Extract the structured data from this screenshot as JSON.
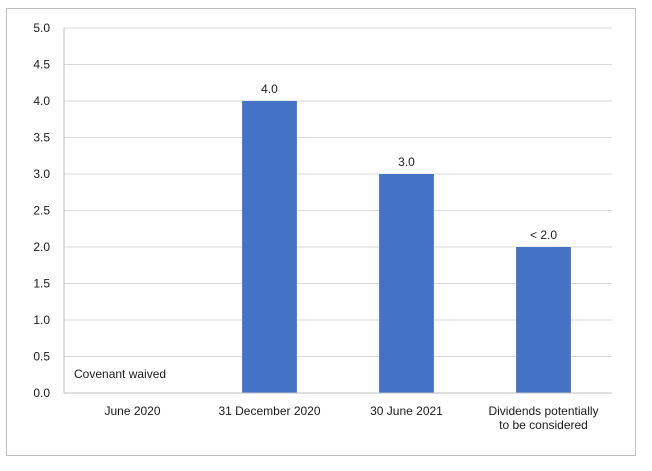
{
  "chart_data": {
    "type": "bar",
    "categories": [
      "June 2020",
      "31 December 2020",
      "30 June 2021",
      "Dividends potentially to be considered"
    ],
    "category_lines": [
      [
        "June 2020"
      ],
      [
        "31 December 2020"
      ],
      [
        "30 June 2021"
      ],
      [
        "Dividends potentially",
        "to be considered"
      ]
    ],
    "values": [
      0,
      4.0,
      3.0,
      2.0
    ],
    "data_labels": [
      "",
      "4.0",
      "3.0",
      "< 2.0"
    ],
    "annotation": "Covenant waived",
    "ylim": [
      0,
      5
    ],
    "yticks": [
      "0.0",
      "0.5",
      "1.0",
      "1.5",
      "2.0",
      "2.5",
      "3.0",
      "3.5",
      "4.0",
      "4.5",
      "5.0"
    ],
    "grid": true,
    "bar_color": "#4472c4",
    "grid_color": "#d9d9d9",
    "title": "",
    "xlabel": "",
    "ylabel": ""
  }
}
